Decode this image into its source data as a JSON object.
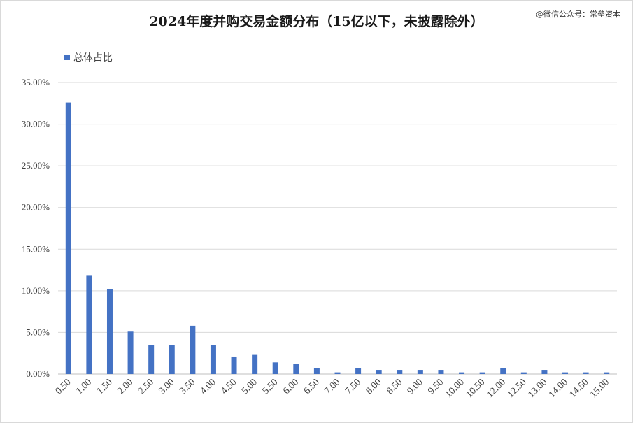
{
  "watermark": "@微信公众号：常垒资本",
  "chart_data": {
    "type": "bar",
    "title": "2024年度并购交易金额分布（15亿以下，未披露除外）",
    "xlabel": "",
    "ylabel": "",
    "legend": {
      "position": "top-left"
    },
    "grid": true,
    "ylim": [
      0,
      35
    ],
    "yticks": [
      "0.00%",
      "5.00%",
      "10.00%",
      "15.00%",
      "20.00%",
      "25.00%",
      "30.00%",
      "35.00%"
    ],
    "categories": [
      "0.50",
      "1.00",
      "1.50",
      "2.00",
      "2.50",
      "3.00",
      "3.50",
      "4.00",
      "4.50",
      "5.00",
      "5.50",
      "6.00",
      "6.50",
      "7.00",
      "7.50",
      "8.00",
      "8.50",
      "9.00",
      "9.50",
      "10.00",
      "10.50",
      "12.00",
      "12.50",
      "13.00",
      "14.00",
      "14.50",
      "15.00"
    ],
    "series": [
      {
        "name": "总体占比",
        "color": "#4472C4",
        "values": [
          32.6,
          11.8,
          10.2,
          5.1,
          3.5,
          3.5,
          5.8,
          3.5,
          2.1,
          2.3,
          1.4,
          1.2,
          0.7,
          0.2,
          0.7,
          0.5,
          0.5,
          0.5,
          0.5,
          0.2,
          0.2,
          0.7,
          0.2,
          0.5,
          0.2,
          0.2,
          0.2
        ]
      }
    ]
  }
}
